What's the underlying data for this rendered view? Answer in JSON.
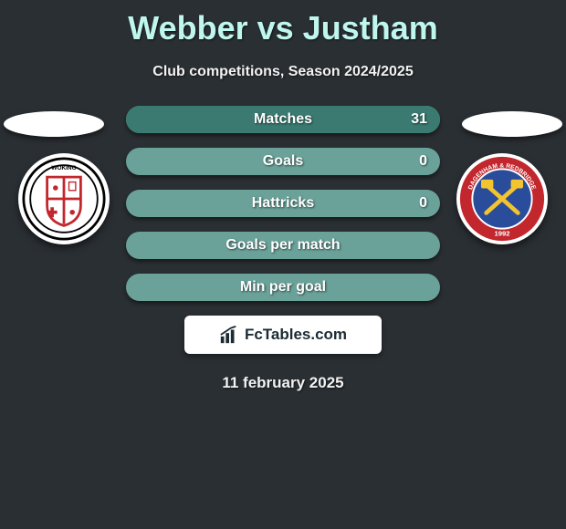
{
  "title": "Webber vs Justham",
  "subtitle": "Club competitions, Season 2024/2025",
  "date": "11 february 2025",
  "brand": {
    "text": "FcTables.com"
  },
  "colors": {
    "background": "#2a2f33",
    "title": "#bff7ef",
    "bar_base": "#6aa29a",
    "bar_fill": "#3a7a70",
    "text": "#ffffff"
  },
  "bars": [
    {
      "label": "Matches",
      "left": "",
      "right": "31",
      "left_pct": 0,
      "right_pct": 100
    },
    {
      "label": "Goals",
      "left": "",
      "right": "0",
      "left_pct": 0,
      "right_pct": 0
    },
    {
      "label": "Hattricks",
      "left": "",
      "right": "0",
      "left_pct": 0,
      "right_pct": 0
    },
    {
      "label": "Goals per match",
      "left": "",
      "right": "",
      "left_pct": 0,
      "right_pct": 0
    },
    {
      "label": "Min per goal",
      "left": "",
      "right": "",
      "left_pct": 0,
      "right_pct": 0
    }
  ],
  "crest_left": {
    "name": "Woking",
    "ring": "#000000",
    "shield_bg": "#ffffff",
    "shield_border": "#c1272d",
    "cross": "#c1272d"
  },
  "crest_right": {
    "name": "Dagenham & Redbridge",
    "outer": "#c1272d",
    "inner": "#2a4d9b",
    "hammers": "#f4c430",
    "year": "1992"
  }
}
